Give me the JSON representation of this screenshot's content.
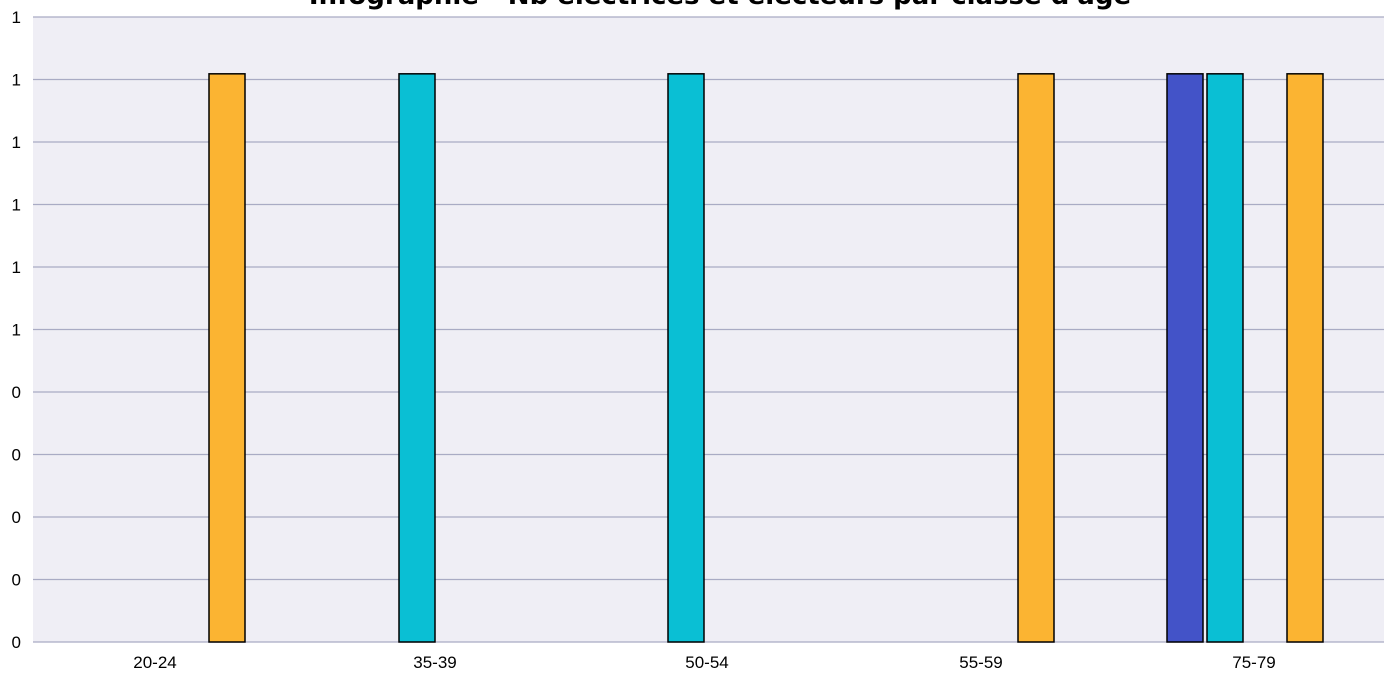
{
  "chart_data": {
    "type": "bar",
    "title": "Infographie - Nb électrices et électeurs par classe d'âge",
    "xlabel": "",
    "ylabel": "",
    "x_tick_labels": [
      "20-24",
      "35-39",
      "50-54",
      "55-59",
      "75-79"
    ],
    "y_tick_labels": [
      "0",
      "0",
      "0",
      "0",
      "0",
      "1",
      "1",
      "1",
      "1",
      "1",
      "1"
    ],
    "ylim": [
      0,
      1.1
    ],
    "grid": true,
    "colors": {
      "plot_background": "#efeef5",
      "gridline": "#a9abc4",
      "orange": "#fbb432",
      "cyan": "#0abfd4",
      "indigo": "#4353c8"
    },
    "bars": [
      {
        "category": "20-24",
        "value": 1,
        "color": "orange"
      },
      {
        "category": "35-39",
        "value": 1,
        "color": "cyan"
      },
      {
        "category": "50-54",
        "value": 1,
        "color": "cyan"
      },
      {
        "category": "55-59",
        "value": 1,
        "color": "orange"
      },
      {
        "category": "75-79",
        "value": 1,
        "color": "indigo"
      },
      {
        "category": "75-79",
        "value": 1,
        "color": "cyan"
      },
      {
        "category": "75-79",
        "value": 1,
        "color": "orange"
      }
    ]
  }
}
